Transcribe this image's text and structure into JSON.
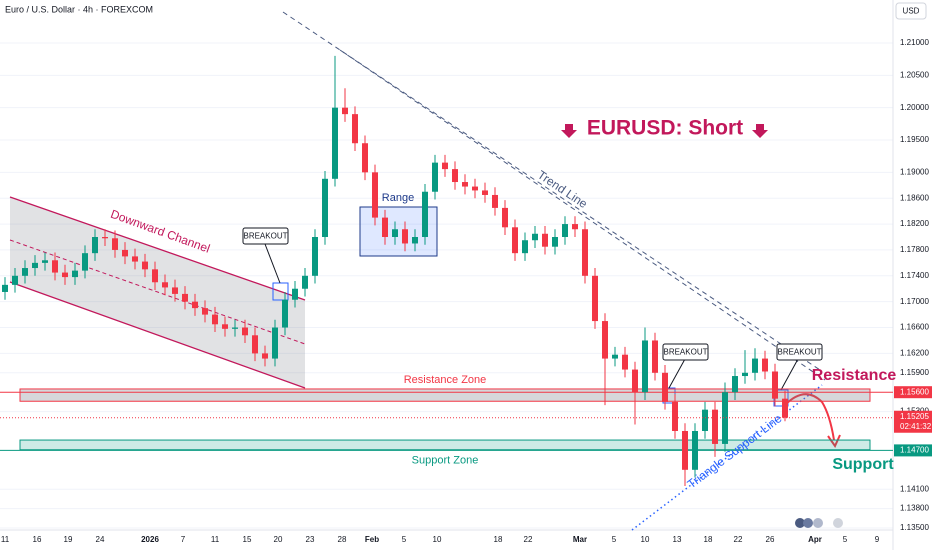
{
  "chart_data": {
    "type": "candlestick",
    "title": "Euro / U.S. Dollar · 4h · FOREXCOM",
    "currency": "USD",
    "headline": "EURUSD: Short",
    "up_color": "#089981",
    "down_color": "#f23645",
    "grid": true,
    "ylim": [
      1.13469,
      1.21665
    ],
    "yticks": [
      {
        "value": 1.21,
        "label": "1.21000"
      },
      {
        "value": 1.205,
        "label": "1.20500"
      },
      {
        "value": 1.2,
        "label": "1.20000"
      },
      {
        "value": 1.195,
        "label": "1.19500"
      },
      {
        "value": 1.19,
        "label": "1.19000"
      },
      {
        "value": 1.186,
        "label": "1.18600"
      },
      {
        "value": 1.182,
        "label": "1.18200"
      },
      {
        "value": 1.178,
        "label": "1.17800"
      },
      {
        "value": 1.174,
        "label": "1.17400"
      },
      {
        "value": 1.17,
        "label": "1.17000"
      },
      {
        "value": 1.166,
        "label": "1.16600"
      },
      {
        "value": 1.162,
        "label": "1.16200"
      },
      {
        "value": 1.159,
        "label": "1.15900"
      },
      {
        "value": 1.153,
        "label": "1.15300"
      },
      {
        "value": 1.141,
        "label": "1.14100"
      },
      {
        "value": 1.138,
        "label": "1.13800"
      },
      {
        "value": 1.135,
        "label": "1.13500"
      }
    ],
    "x_labels": [
      "11",
      "16",
      "19",
      "24",
      "2026",
      "7",
      "11",
      "15",
      "20",
      "23",
      "28",
      "Feb",
      "5",
      "10",
      "18",
      "22",
      "Mar",
      "5",
      "10",
      "13",
      "18",
      "22",
      "26",
      "Apr",
      "5",
      "9"
    ],
    "open": [
      1.1715,
      1.1726,
      1.174,
      1.1752,
      1.176,
      1.1764,
      1.1745,
      1.1738,
      1.1748,
      1.1775,
      1.18,
      1.1798,
      1.178,
      1.177,
      1.1762,
      1.175,
      1.173,
      1.1722,
      1.1712,
      1.17,
      1.169,
      1.168,
      1.1665,
      1.1658,
      1.166,
      1.1648,
      1.162,
      1.1612,
      1.166,
      1.1703,
      1.172,
      1.174,
      1.18,
      1.189,
      1.2,
      1.199,
      1.1945,
      1.19,
      1.183,
      1.18,
      1.1812,
      1.179,
      1.18,
      1.187,
      1.1915,
      1.1905,
      1.1885,
      1.1878,
      1.1872,
      1.1865,
      1.1845,
      1.1815,
      1.1775,
      1.1795,
      1.1805,
      1.1785,
      1.18,
      1.182,
      1.1812,
      1.174,
      1.167,
      1.1612,
      1.1618,
      1.1595,
      1.156,
      1.164,
      1.159,
      1.1545,
      1.15,
      1.144,
      1.15,
      1.1533,
      1.148,
      1.156,
      1.1585,
      1.159,
      1.1612,
      1.1592,
      1.155
    ],
    "high": [
      1.1738,
      1.1752,
      1.1764,
      1.1772,
      1.1776,
      1.1776,
      1.1757,
      1.176,
      1.1787,
      1.1812,
      1.1812,
      1.181,
      1.1792,
      1.1782,
      1.1774,
      1.1762,
      1.1742,
      1.1734,
      1.1724,
      1.1712,
      1.1702,
      1.1692,
      1.1677,
      1.1672,
      1.1672,
      1.166,
      1.1632,
      1.1672,
      1.1715,
      1.1732,
      1.1752,
      1.1812,
      1.1902,
      1.208,
      1.203,
      1.2002,
      1.1957,
      1.1912,
      1.1842,
      1.1824,
      1.1824,
      1.1812,
      1.1882,
      1.1927,
      1.1927,
      1.1917,
      1.1897,
      1.189,
      1.1884,
      1.1877,
      1.1857,
      1.1827,
      1.1807,
      1.1817,
      1.1817,
      1.1812,
      1.1832,
      1.1832,
      1.1824,
      1.1752,
      1.1682,
      1.163,
      1.163,
      1.1607,
      1.166,
      1.1652,
      1.1602,
      1.1557,
      1.1512,
      1.1512,
      1.1545,
      1.1545,
      1.1575,
      1.1597,
      1.1625,
      1.1628,
      1.1624,
      1.1604,
      1.1562
    ],
    "low": [
      1.1703,
      1.1714,
      1.1728,
      1.174,
      1.1748,
      1.1733,
      1.1726,
      1.1726,
      1.1736,
      1.1763,
      1.1786,
      1.1768,
      1.1758,
      1.175,
      1.1738,
      1.1718,
      1.171,
      1.17,
      1.1688,
      1.1678,
      1.1668,
      1.1653,
      1.1646,
      1.1646,
      1.1636,
      1.1608,
      1.16,
      1.16,
      1.1648,
      1.1691,
      1.1708,
      1.1728,
      1.1788,
      1.1878,
      1.1978,
      1.1933,
      1.1888,
      1.1818,
      1.1788,
      1.1788,
      1.1778,
      1.1778,
      1.1788,
      1.1858,
      1.1893,
      1.1873,
      1.1866,
      1.186,
      1.1853,
      1.1833,
      1.1803,
      1.1763,
      1.1763,
      1.1783,
      1.1773,
      1.1773,
      1.1788,
      1.18,
      1.1728,
      1.1658,
      1.154,
      1.16,
      1.1583,
      1.151,
      1.1548,
      1.1578,
      1.1533,
      1.1488,
      1.1415,
      1.1428,
      1.1488,
      1.146,
      1.1468,
      1.1548,
      1.1573,
      1.1578,
      1.158,
      1.1538,
      1.1515
    ],
    "close": [
      1.1726,
      1.174,
      1.1752,
      1.176,
      1.1764,
      1.1745,
      1.1738,
      1.1748,
      1.1775,
      1.18,
      1.1798,
      1.178,
      1.177,
      1.1762,
      1.175,
      1.173,
      1.1722,
      1.1712,
      1.17,
      1.169,
      1.168,
      1.1665,
      1.1658,
      1.166,
      1.1648,
      1.162,
      1.1612,
      1.166,
      1.1703,
      1.172,
      1.174,
      1.18,
      1.189,
      1.2,
      1.199,
      1.1945,
      1.19,
      1.183,
      1.18,
      1.1812,
      1.179,
      1.18,
      1.187,
      1.1915,
      1.1905,
      1.1885,
      1.1878,
      1.1872,
      1.1865,
      1.1845,
      1.1815,
      1.1775,
      1.1795,
      1.1805,
      1.1785,
      1.18,
      1.182,
      1.1812,
      1.174,
      1.167,
      1.1612,
      1.1618,
      1.1595,
      1.156,
      1.164,
      1.159,
      1.1545,
      1.15,
      1.144,
      1.15,
      1.1533,
      1.148,
      1.156,
      1.1585,
      1.159,
      1.1612,
      1.1592,
      1.155,
      1.15205
    ],
    "last_price": 1.15205,
    "countdown": "02:41:32",
    "levels": [
      {
        "value": 1.156,
        "label": "1.15600",
        "color": "#f23645"
      },
      {
        "value": 1.147,
        "label": "1.14700",
        "color": "#089981"
      }
    ],
    "zones": [
      {
        "name": "Resistance Zone",
        "range": [
          1.1546,
          1.1565
        ],
        "color": "#f23645"
      },
      {
        "name": "Support Zone",
        "range": [
          1.1471,
          1.1486
        ],
        "color": "#089981"
      }
    ],
    "annotations": {
      "channel": "Downward Channel",
      "range": "Range",
      "trend_line": "Trend Line",
      "breakouts": [
        "BREAKOUT",
        "BREAKOUT",
        "BREAKOUT"
      ],
      "resistance": "Resistance",
      "support": "Support",
      "triangle": "Triangle Support Line"
    }
  }
}
